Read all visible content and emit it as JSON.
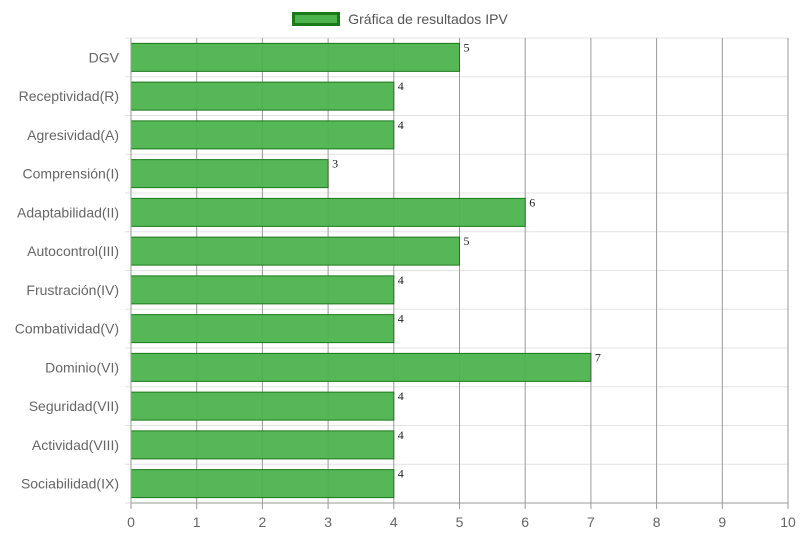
{
  "chart_data": {
    "type": "bar",
    "orientation": "horizontal",
    "categories": [
      "DGV",
      "Receptividad(R)",
      "Agresividad(A)",
      "Comprensión(I)",
      "Adaptabilidad(II)",
      "Autocontrol(III)",
      "Frustración(IV)",
      "Combatividad(V)",
      "Dominio(VI)",
      "Seguridad(VII)",
      "Actividad(VIII)",
      "Sociabilidad(IX)"
    ],
    "series": [
      {
        "name": "Gráfica de resultados IPV",
        "values": [
          5,
          4,
          4,
          3,
          6,
          5,
          4,
          4,
          7,
          4,
          4,
          4
        ]
      }
    ],
    "xlim": [
      0,
      10
    ],
    "x_ticks": [
      "0",
      "1",
      "2",
      "3",
      "4",
      "5",
      "6",
      "7",
      "8",
      "9",
      "10"
    ],
    "grid": true,
    "legend_position": "top",
    "data_labels": true
  },
  "colors": {
    "bar_fill": "#4db34d",
    "bar_border": "#1a7a1a",
    "vertical_grid": "#9a9a9a",
    "horizontal_grid": "#e3e3e3",
    "axis_text": "#666666",
    "value_text": "#222222"
  }
}
